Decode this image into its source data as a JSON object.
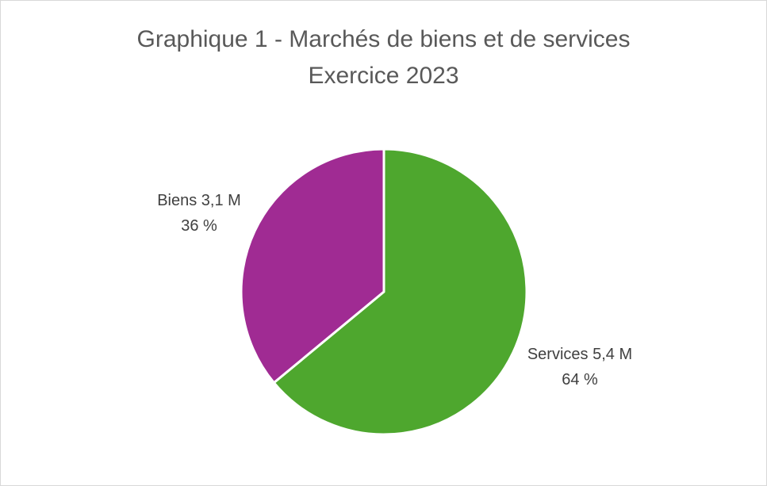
{
  "chart_data": {
    "type": "pie",
    "title": "Graphique 1 - Marchés de biens et de services",
    "subtitle": "Exercice 2023",
    "slices": [
      {
        "category": "Services",
        "value": 5.4,
        "value_label": "5,4 M",
        "percent": 64,
        "percent_label": "64 %",
        "color": "#4ea72e"
      },
      {
        "category": "Biens",
        "value": 3.1,
        "value_label": "3,1 M",
        "percent": 36,
        "percent_label": "36 %",
        "color": "#a02b93"
      }
    ],
    "legend": "none",
    "slice_border_color": "#ffffff"
  }
}
